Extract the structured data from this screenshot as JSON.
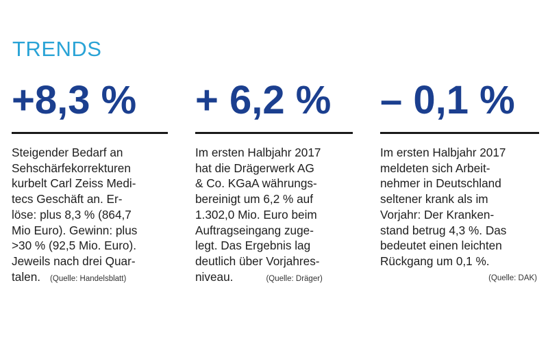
{
  "title": "TRENDS",
  "columns": [
    {
      "value": "+8,3 %",
      "lines": [
        "Steigender Bedarf an",
        "Sehschärfekorrekturen",
        "kurbelt Carl Zeiss Medi-",
        "tecs Geschäft an. Er-",
        "löse: plus 8,3 % (864,7",
        "Mio Euro). Gewinn: plus",
        ">30 % (92,5 Mio. Euro).",
        "Jeweils nach drei Quar-",
        "talen."
      ],
      "source": "(Quelle: Handelsblatt)"
    },
    {
      "value": "+ 6,2 %",
      "lines": [
        "Im ersten Halbjahr 2017",
        "hat die Drägerwerk AG",
        "& Co. KGaA währungs-",
        "bereinigt um 6,2 % auf",
        "1.302,0 Mio. Euro beim",
        "Auftragseingang zuge-",
        "legt. Das Ergebnis lag",
        "deutlich über Vorjahres-",
        "niveau."
      ],
      "source": "(Quelle: Dräger)"
    },
    {
      "value": "– 0,1 %",
      "lines": [
        "Im ersten Halbjahr 2017",
        "meldeten sich Arbeit-",
        "nehmer in Deutschland",
        "seltener krank als im",
        "Vorjahr: Der Kranken-",
        "stand betrug 4,3 %. Das",
        "bedeutet einen leichten",
        "Rückgang um 0,1 %."
      ],
      "source": "(Quelle: DAK)"
    }
  ]
}
